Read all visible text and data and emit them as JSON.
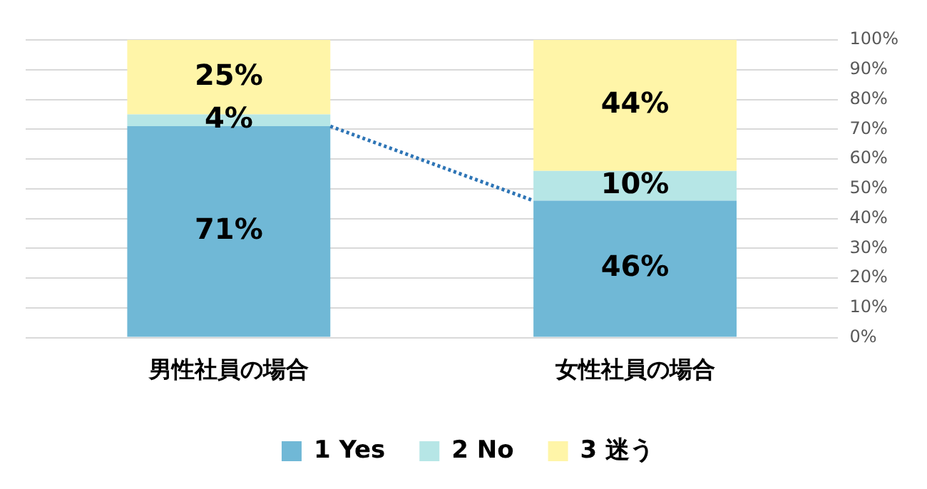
{
  "chart_data": {
    "type": "bar",
    "stacked": true,
    "categories": [
      "男性社員の場合",
      "女性社員の場合"
    ],
    "series": [
      {
        "name": "1 Yes",
        "color": "#70b8d6",
        "values": [
          71,
          46
        ]
      },
      {
        "name": "2 No",
        "color": "#b6e6e6",
        "values": [
          4,
          10
        ]
      },
      {
        "name": "3 迷う",
        "color": "#fff5a8",
        "values": [
          25,
          44
        ]
      }
    ],
    "ylim": [
      0,
      100
    ],
    "yticks": [
      {
        "value": 0,
        "label": "0%"
      },
      {
        "value": 10,
        "label": "10%"
      },
      {
        "value": 20,
        "label": "20%"
      },
      {
        "value": 30,
        "label": "30%"
      },
      {
        "value": 40,
        "label": "40%"
      },
      {
        "value": 50,
        "label": "50%"
      },
      {
        "value": 60,
        "label": "60%"
      },
      {
        "value": 70,
        "label": "70%"
      },
      {
        "value": 80,
        "label": "80%"
      },
      {
        "value": 90,
        "label": "90%"
      },
      {
        "value": 100,
        "label": "100%"
      }
    ],
    "value_labels": [
      [
        "71%",
        "46%"
      ],
      [
        "4%",
        "10%"
      ],
      [
        "25%",
        "44%"
      ]
    ],
    "grid": "y",
    "legend": "bottom"
  }
}
